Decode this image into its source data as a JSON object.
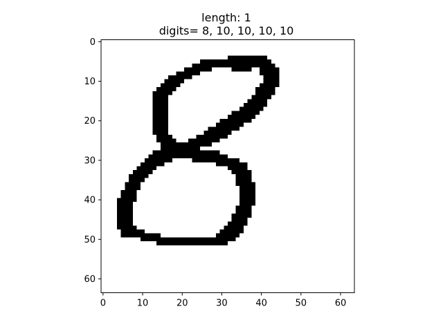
{
  "chart_data": {
    "type": "heatmap",
    "title_lines": [
      "length: 1",
      "digits= 8, 10, 10, 10, 10"
    ],
    "image_size": [
      64,
      64
    ],
    "colormap": "binary",
    "xlim": [
      -0.5,
      63.5
    ],
    "ylim": [
      63.5,
      -0.5
    ],
    "x_ticks": [
      0,
      10,
      20,
      30,
      40,
      50,
      60
    ],
    "y_ticks": [
      0,
      10,
      20,
      30,
      40,
      50,
      60
    ],
    "x_tick_labels": [
      "0",
      "10",
      "20",
      "30",
      "40",
      "50",
      "60"
    ],
    "y_tick_labels": [
      "0",
      "10",
      "20",
      "30",
      "40",
      "50",
      "60"
    ],
    "foreground_color": "#000000",
    "background_color": "#ffffff",
    "ink_rows": [
      {
        "y": 4,
        "runs": [
          [
            32,
            41
          ]
        ]
      },
      {
        "y": 5,
        "runs": [
          [
            25,
            42
          ]
        ]
      },
      {
        "y": 6,
        "runs": [
          [
            23,
            43
          ]
        ]
      },
      {
        "y": 7,
        "runs": [
          [
            21,
            27
          ],
          [
            33,
            37
          ],
          [
            40,
            44
          ]
        ]
      },
      {
        "y": 8,
        "runs": [
          [
            19,
            24
          ],
          [
            40,
            44
          ]
        ]
      },
      {
        "y": 9,
        "runs": [
          [
            17,
            22
          ],
          [
            41,
            44
          ]
        ]
      },
      {
        "y": 10,
        "runs": [
          [
            16,
            20
          ],
          [
            41,
            44
          ]
        ]
      },
      {
        "y": 11,
        "runs": [
          [
            15,
            19
          ],
          [
            40,
            44
          ]
        ]
      },
      {
        "y": 12,
        "runs": [
          [
            14,
            18
          ],
          [
            39,
            43
          ]
        ]
      },
      {
        "y": 13,
        "runs": [
          [
            13,
            17
          ],
          [
            39,
            43
          ]
        ]
      },
      {
        "y": 14,
        "runs": [
          [
            13,
            16
          ],
          [
            38,
            42
          ]
        ]
      },
      {
        "y": 15,
        "runs": [
          [
            13,
            16
          ],
          [
            37,
            41
          ]
        ]
      },
      {
        "y": 16,
        "runs": [
          [
            13,
            16
          ],
          [
            36,
            41
          ]
        ]
      },
      {
        "y": 17,
        "runs": [
          [
            13,
            16
          ],
          [
            35,
            40
          ]
        ]
      },
      {
        "y": 18,
        "runs": [
          [
            13,
            16
          ],
          [
            33,
            39
          ]
        ]
      },
      {
        "y": 19,
        "runs": [
          [
            13,
            16
          ],
          [
            32,
            38
          ]
        ]
      },
      {
        "y": 20,
        "runs": [
          [
            13,
            16
          ],
          [
            30,
            37
          ]
        ]
      },
      {
        "y": 21,
        "runs": [
          [
            13,
            16
          ],
          [
            29,
            35
          ]
        ]
      },
      {
        "y": 22,
        "runs": [
          [
            13,
            16
          ],
          [
            27,
            34
          ]
        ]
      },
      {
        "y": 23,
        "runs": [
          [
            13,
            16
          ],
          [
            26,
            32
          ]
        ]
      },
      {
        "y": 24,
        "runs": [
          [
            14,
            17
          ],
          [
            24,
            31
          ]
        ]
      },
      {
        "y": 25,
        "runs": [
          [
            14,
            18
          ],
          [
            22,
            29
          ]
        ]
      },
      {
        "y": 26,
        "runs": [
          [
            15,
            27
          ]
        ]
      },
      {
        "y": 27,
        "runs": [
          [
            15,
            24
          ]
        ]
      },
      {
        "y": 28,
        "runs": [
          [
            13,
            29
          ]
        ]
      },
      {
        "y": 29,
        "runs": [
          [
            12,
            31
          ]
        ]
      },
      {
        "y": 30,
        "runs": [
          [
            11,
            17
          ],
          [
            23,
            34
          ]
        ]
      },
      {
        "y": 31,
        "runs": [
          [
            10,
            15
          ],
          [
            29,
            36
          ]
        ]
      },
      {
        "y": 32,
        "runs": [
          [
            9,
            13
          ],
          [
            32,
            36
          ]
        ]
      },
      {
        "y": 33,
        "runs": [
          [
            8,
            12
          ],
          [
            33,
            37
          ]
        ]
      },
      {
        "y": 34,
        "runs": [
          [
            7,
            11
          ],
          [
            34,
            37
          ]
        ]
      },
      {
        "y": 35,
        "runs": [
          [
            7,
            10
          ],
          [
            34,
            37
          ]
        ]
      },
      {
        "y": 36,
        "runs": [
          [
            6,
            9
          ],
          [
            34,
            38
          ]
        ]
      },
      {
        "y": 37,
        "runs": [
          [
            6,
            9
          ],
          [
            35,
            38
          ]
        ]
      },
      {
        "y": 38,
        "runs": [
          [
            5,
            8
          ],
          [
            35,
            38
          ]
        ]
      },
      {
        "y": 39,
        "runs": [
          [
            5,
            8
          ],
          [
            35,
            38
          ]
        ]
      },
      {
        "y": 40,
        "runs": [
          [
            4,
            8
          ],
          [
            35,
            38
          ]
        ]
      },
      {
        "y": 41,
        "runs": [
          [
            4,
            7
          ],
          [
            35,
            38
          ]
        ]
      },
      {
        "y": 42,
        "runs": [
          [
            4,
            7
          ],
          [
            34,
            37
          ]
        ]
      },
      {
        "y": 43,
        "runs": [
          [
            4,
            7
          ],
          [
            34,
            37
          ]
        ]
      },
      {
        "y": 44,
        "runs": [
          [
            4,
            7
          ],
          [
            33,
            37
          ]
        ]
      },
      {
        "y": 45,
        "runs": [
          [
            4,
            7
          ],
          [
            33,
            36
          ]
        ]
      },
      {
        "y": 46,
        "runs": [
          [
            4,
            7
          ],
          [
            32,
            36
          ]
        ]
      },
      {
        "y": 47,
        "runs": [
          [
            4,
            8
          ],
          [
            31,
            35
          ]
        ]
      },
      {
        "y": 48,
        "runs": [
          [
            5,
            10
          ],
          [
            30,
            35
          ]
        ]
      },
      {
        "y": 49,
        "runs": [
          [
            5,
            14
          ],
          [
            29,
            34
          ]
        ]
      },
      {
        "y": 50,
        "runs": [
          [
            10,
            33
          ]
        ]
      },
      {
        "y": 51,
        "runs": [
          [
            14,
            31
          ]
        ]
      }
    ]
  }
}
